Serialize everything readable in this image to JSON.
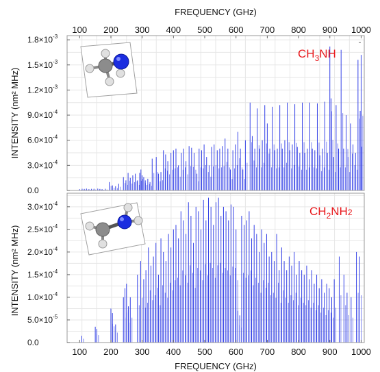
{
  "x_axis": {
    "label": "FREQUENCY  (GHz)",
    "ticks": [
      100,
      200,
      300,
      400,
      500,
      600,
      700,
      800,
      900,
      1000
    ],
    "range": [
      60,
      1010
    ]
  },
  "chart_data": [
    {
      "type": "bar",
      "species": "CH3NH",
      "title_main": "CH",
      "title_sub1": "3",
      "title_tail": "NH",
      "title_sub2": "",
      "title_color": "#e8191d",
      "ylabel": "INTENSITY  (nm² MHz)",
      "ylim": [
        0,
        0.00185
      ],
      "ytick_values": [
        0,
        0.0003,
        0.0006,
        0.0009,
        0.0012,
        0.0015,
        0.0018
      ],
      "ytick_mantissa": [
        "0.0",
        "3.0×10",
        "6.0×10",
        "9.0×10",
        "1.2×10",
        "1.5×10",
        "1.8×10"
      ],
      "ytick_exponent": [
        "",
        "-4",
        "-4",
        "-4",
        "-3",
        "-3",
        "-3"
      ],
      "series": [
        {
          "color": "#3340e6",
          "x": [
            100,
            108,
            115,
            122,
            130,
            138,
            146,
            158,
            165,
            172,
            182,
            195,
            205,
            215,
            225,
            240,
            248,
            255,
            262,
            270,
            278,
            285,
            292,
            296,
            300,
            305,
            310,
            318,
            325,
            332,
            345,
            352,
            360,
            368,
            375,
            382,
            392,
            400,
            408,
            416,
            425,
            432,
            440,
            450,
            458,
            466,
            475,
            482,
            490,
            498,
            506,
            514,
            522,
            530,
            540,
            548,
            556,
            565,
            574,
            582,
            590,
            598,
            606,
            614,
            622,
            630,
            645,
            652,
            660,
            668,
            676,
            684,
            692,
            700,
            708,
            716,
            724,
            732,
            740,
            748,
            756,
            764,
            772,
            780,
            788,
            796,
            804,
            812,
            820,
            828,
            836,
            844,
            852,
            860,
            868,
            876,
            884,
            892,
            900,
            904,
            912,
            920,
            928,
            936,
            944,
            952,
            958,
            966,
            974,
            982,
            990,
            997,
            1000
          ],
          "y": [
            1.5e-05,
            2e-05,
            1.8e-05,
            2.2e-05,
            1.5e-05,
            1.9e-05,
            2e-05,
            2.2e-05,
            1.8e-05,
            1.5e-05,
            2e-05,
            0.0001,
            6e-05,
            5e-05,
            8e-05,
            0.00016,
            0.00012,
            0.00021,
            0.00015,
            0.00018,
            0.0002,
            0.00012,
            0.00021,
            0.00025,
            0.00018,
            0.00016,
            0.00012,
            0.00014,
            0.0001,
            0.00038,
            0.0004,
            0.0002,
            0.00022,
            0.00048,
            0.00043,
            0.00035,
            0.00045,
            0.00048,
            0.0005,
            0.0003,
            0.00045,
            0.0005,
            0.00035,
            0.00053,
            0.00051,
            0.00045,
            0.0002,
            0.0005,
            0.00048,
            0.00055,
            0.0004,
            0.0003,
            0.00052,
            0.00055,
            0.00048,
            0.0005,
            0.00053,
            0.00062,
            0.0005,
            0.00025,
            0.00048,
            0.00055,
            0.0007,
            0.0005,
            0.00025,
            0.0006,
            0.00105,
            0.00065,
            0.0005,
            0.00098,
            0.0005,
            0.0006,
            0.00102,
            0.0008,
            0.0005,
            0.001,
            0.00048,
            0.0005,
            0.00102,
            0.0005,
            0.0006,
            0.00105,
            0.00048,
            0.00055,
            0.00103,
            0.00052,
            0.00045,
            0.00105,
            0.00045,
            0.0005,
            0.00105,
            0.0005,
            0.00048,
            0.00104,
            0.00042,
            0.0005,
            0.00106,
            0.00045,
            0.00172,
            0.0011,
            0.0004,
            0.00102,
            0.0005,
            0.00168,
            0.0005,
            0.0009,
            0.0004,
            0.0008,
            0.00055,
            0.00045,
            0.00156,
            0.00095,
            0.00162
          ]
        }
      ]
    },
    {
      "type": "bar",
      "species": "CH2NH2",
      "title_main": "CH",
      "title_sub1": "2",
      "title_tail": "NH",
      "title_sub2": "2",
      "title_color": "#e8191d",
      "ylabel": "INTENSITY  (nm² MHz)",
      "ylim": [
        0,
        0.00033
      ],
      "ytick_values": [
        0,
        5e-05,
        0.0001,
        0.00015,
        0.0002,
        0.00025,
        0.0003
      ],
      "ytick_mantissa": [
        "0.0",
        "5.0×10",
        "1.0×10",
        "1.5×10",
        "2.0×10",
        "2.5×10",
        "3.0×10"
      ],
      "ytick_exponent": [
        "",
        "-5",
        "-4",
        "-4",
        "-4",
        "-4",
        "-4"
      ],
      "series": [
        {
          "color": "#3340e6",
          "x": [
            107,
            150,
            155,
            200,
            205,
            215,
            240,
            245,
            250,
            256,
            262,
            285,
            295,
            305,
            312,
            320,
            328,
            336,
            344,
            352,
            360,
            368,
            376,
            384,
            392,
            400,
            408,
            416,
            424,
            432,
            440,
            448,
            456,
            464,
            472,
            480,
            488,
            496,
            504,
            512,
            520,
            528,
            536,
            544,
            552,
            560,
            568,
            576,
            584,
            592,
            600,
            606,
            612,
            618,
            626,
            634,
            642,
            650,
            658,
            666,
            674,
            682,
            690,
            698,
            706,
            714,
            722,
            730,
            738,
            746,
            754,
            762,
            770,
            778,
            786,
            794,
            802,
            810,
            818,
            826,
            834,
            842,
            850,
            858,
            866,
            874,
            882,
            890,
            898,
            906,
            914,
            930,
            945,
            955,
            968,
            985,
            995
          ],
          "y": [
            1.5e-05,
            3.5e-05,
            3e-05,
            7.5e-05,
            6.5e-05,
            4e-05,
            0.0001,
            0.00012,
            0.00013,
            8e-05,
            0.0001,
            0.00015,
            0.00018,
            0.00014,
            0.00016,
            0.00021,
            0.00017,
            0.00019,
            0.00022,
            0.00015,
            0.00023,
            0.0002,
            0.00018,
            0.00024,
            0.00021,
            0.00025,
            0.00026,
            0.00023,
            0.00029,
            0.00027,
            0.00024,
            0.00031,
            0.00028,
            0.00022,
            0.0003,
            0.00029,
            0.00025,
            0.000315,
            0.00027,
            0.00032,
            0.0003,
            0.00026,
            0.00031,
            0.00032,
            0.00028,
            0.0003,
            0.00029,
            0.00027,
            0.000305,
            0.0003,
            0.00025,
            7e-05,
            6e-05,
            0.00028,
            0.00026,
            0.00027,
            0.00029,
            0.00023,
            0.00026,
            0.00024,
            0.0002,
            0.00025,
            0.00022,
            0.00024,
            0.00019,
            0.0002,
            0.00018,
            0.00024,
            0.00016,
            0.00021,
            0.00018,
            0.00016,
            0.00019,
            0.00017,
            0.0002,
            0.00015,
            0.00018,
            0.00016,
            0.00015,
            0.00017,
            0.00014,
            0.00016,
            0.00013,
            0.00015,
            0.00012,
            0.00014,
            0.00011,
            0.00013,
            0.00012,
            0.0001,
            0.00014,
            0.00019,
            0.00015,
            0.00011,
            0.0001,
            0.0002,
            0.00019
          ]
        }
      ]
    }
  ]
}
